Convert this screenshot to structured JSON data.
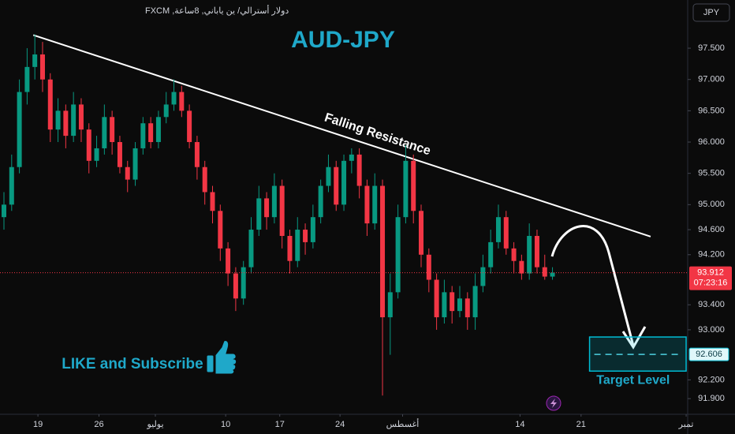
{
  "chart_data": {
    "type": "candlestick",
    "title": "AUD-JPY",
    "symbol_description": "دولار أسترالي/ ين ياباني, 8ساعة, FXCM",
    "currency_button": "JPY",
    "up_color": "#089981",
    "down_color": "#f23645",
    "open": [
      94.8,
      95.0,
      95.6,
      96.8,
      97.2,
      97.4,
      97.0,
      96.2,
      96.5,
      96.1,
      96.6,
      96.2,
      95.7,
      95.9,
      96.4,
      96.0,
      95.6,
      95.4,
      95.9,
      96.3,
      96.0,
      96.4,
      96.6,
      96.8,
      96.5,
      96.0,
      95.6,
      95.2,
      94.9,
      94.3,
      93.9,
      93.5,
      94.0,
      94.6,
      95.1,
      94.8,
      95.3,
      94.5,
      94.1,
      94.6,
      94.4,
      94.8,
      95.3,
      95.6,
      95.0,
      95.7,
      95.8,
      95.3,
      94.7,
      95.3,
      93.2,
      93.6,
      94.8,
      95.7,
      94.9,
      94.2,
      93.8,
      93.2,
      93.6,
      93.3,
      93.5,
      93.2,
      93.7,
      94.0,
      94.4,
      94.8,
      94.3,
      94.1,
      93.9,
      94.5,
      94.0,
      93.85
    ],
    "high": [
      95.2,
      95.8,
      97.0,
      97.5,
      97.72,
      97.6,
      97.1,
      96.7,
      96.6,
      96.8,
      96.7,
      96.3,
      96.1,
      96.6,
      96.5,
      96.1,
      95.7,
      96.0,
      96.4,
      96.4,
      96.5,
      96.8,
      97.0,
      96.9,
      96.6,
      96.1,
      95.7,
      95.3,
      95.0,
      94.4,
      94.0,
      94.1,
      94.8,
      95.3,
      95.2,
      95.5,
      95.4,
      94.6,
      94.8,
      94.7,
      95.0,
      95.4,
      95.8,
      95.7,
      95.8,
      95.9,
      95.9,
      95.4,
      95.5,
      95.4,
      93.9,
      95.0,
      95.95,
      95.8,
      95.0,
      94.3,
      93.9,
      93.8,
      93.7,
      93.7,
      93.6,
      93.9,
      94.2,
      94.6,
      95.0,
      94.9,
      94.4,
      94.2,
      94.7,
      94.6,
      94.2,
      94.0
    ],
    "low": [
      94.6,
      94.9,
      95.5,
      96.6,
      97.0,
      96.8,
      96.0,
      96.0,
      95.9,
      96.0,
      96.0,
      95.5,
      95.6,
      95.8,
      95.8,
      95.5,
      95.2,
      95.3,
      95.8,
      95.9,
      95.9,
      96.3,
      96.5,
      96.4,
      95.9,
      95.4,
      95.0,
      94.7,
      94.1,
      93.7,
      93.3,
      93.4,
      93.9,
      94.5,
      94.6,
      94.7,
      94.3,
      93.9,
      94.0,
      94.2,
      94.3,
      94.7,
      95.2,
      94.9,
      94.9,
      95.5,
      95.1,
      94.5,
      94.6,
      91.95,
      92.6,
      93.5,
      94.7,
      94.7,
      94.0,
      93.6,
      93.0,
      93.1,
      93.1,
      93.2,
      93.0,
      93.0,
      93.6,
      93.9,
      94.3,
      94.2,
      93.9,
      93.8,
      93.8,
      93.9,
      93.8,
      93.8
    ],
    "close": [
      95.0,
      95.6,
      96.8,
      97.2,
      97.4,
      97.0,
      96.2,
      96.5,
      96.1,
      96.6,
      96.2,
      95.7,
      95.9,
      96.4,
      96.0,
      95.6,
      95.4,
      95.9,
      96.3,
      96.0,
      96.4,
      96.6,
      96.8,
      96.5,
      96.0,
      95.6,
      95.2,
      94.9,
      94.3,
      93.9,
      93.5,
      94.0,
      94.6,
      95.1,
      94.8,
      95.3,
      94.5,
      94.1,
      94.6,
      94.4,
      94.8,
      95.3,
      95.6,
      95.0,
      95.7,
      95.8,
      95.3,
      94.7,
      95.3,
      93.2,
      93.6,
      94.8,
      95.7,
      94.9,
      94.2,
      93.8,
      93.2,
      93.6,
      93.3,
      93.5,
      93.2,
      93.7,
      94.0,
      94.4,
      94.8,
      94.3,
      94.1,
      93.9,
      94.5,
      94.0,
      93.85,
      93.912
    ],
    "xlim": [
      -0.51,
      88.5
    ],
    "ylim": [
      91.65,
      98.27
    ],
    "xticks": [
      {
        "value": 4.4,
        "label": "19"
      },
      {
        "value": 12.3,
        "label": "26"
      },
      {
        "value": 19.6,
        "label": "يوليو"
      },
      {
        "value": 28.7,
        "label": "10"
      },
      {
        "value": 35.7,
        "label": "17"
      },
      {
        "value": 43.5,
        "label": "24"
      },
      {
        "value": 51.6,
        "label": "أغسطس"
      },
      {
        "value": 66.8,
        "label": "14"
      },
      {
        "value": 74.7,
        "label": "21"
      },
      {
        "value": 88.3,
        "label": "تمبر"
      }
    ],
    "yticks": [
      {
        "value": 97.5,
        "label": "97.500"
      },
      {
        "value": 97.0,
        "label": "97.000"
      },
      {
        "value": 96.5,
        "label": "96.500"
      },
      {
        "value": 96.0,
        "label": "96.000"
      },
      {
        "value": 95.5,
        "label": "95.500"
      },
      {
        "value": 95.0,
        "label": "95.000"
      },
      {
        "value": 94.6,
        "label": "94.600"
      },
      {
        "value": 94.2,
        "label": "94.200"
      },
      {
        "value": 93.4,
        "label": "93.400"
      },
      {
        "value": 93.0,
        "label": "93.000"
      },
      {
        "value": 92.2,
        "label": "92.200"
      },
      {
        "value": 91.9,
        "label": "91.900"
      }
    ],
    "last_price": 93.912,
    "countdown": "07:23:16",
    "trendline": {
      "label": "Falling Resistance",
      "x": [
        3.8,
        83.7
      ],
      "y": [
        97.71,
        94.49
      ]
    },
    "target": {
      "label": "Target Level",
      "x": [
        75.8,
        88.3
      ],
      "y": [
        92.34,
        92.885
      ],
      "level": 92.606
    },
    "annotation": "LIKE and Subscribe"
  }
}
